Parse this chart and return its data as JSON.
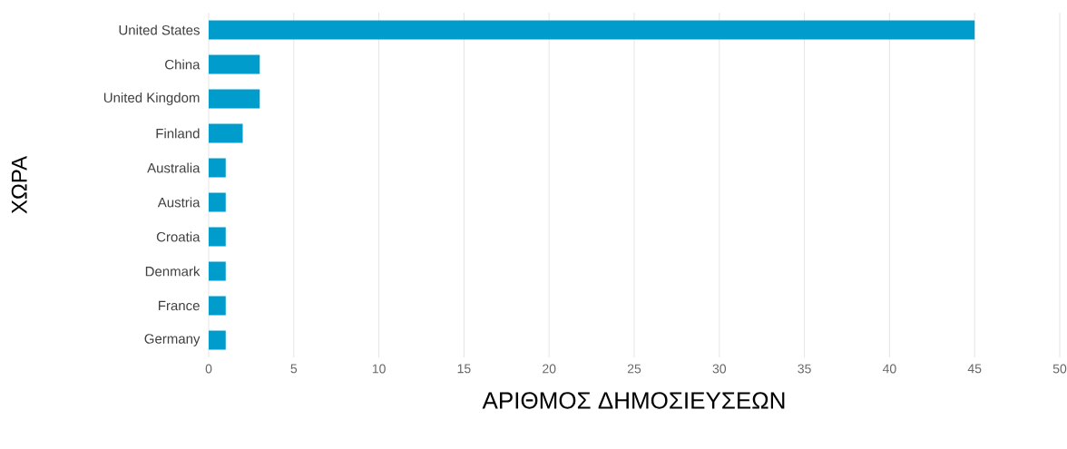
{
  "chart_data": {
    "type": "bar",
    "orientation": "horizontal",
    "xlabel": "ΑΡΙΘΜΟΣ ΔΗΜΟΣΙΕΥΣΕΩΝ",
    "ylabel": "ΧΩΡΑ",
    "categories": [
      "United States",
      "China",
      "United Kingdom",
      "Finland",
      "Australia",
      "Austria",
      "Croatia",
      "Denmark",
      "France",
      "Germany"
    ],
    "values": [
      45,
      3,
      3,
      2,
      1,
      1,
      1,
      1,
      1,
      1
    ],
    "color": "#009ccc",
    "xlim": [
      0,
      50
    ],
    "xticks": [
      0,
      5,
      10,
      15,
      20,
      25,
      30,
      35,
      40,
      45,
      50
    ],
    "grid": "x"
  }
}
